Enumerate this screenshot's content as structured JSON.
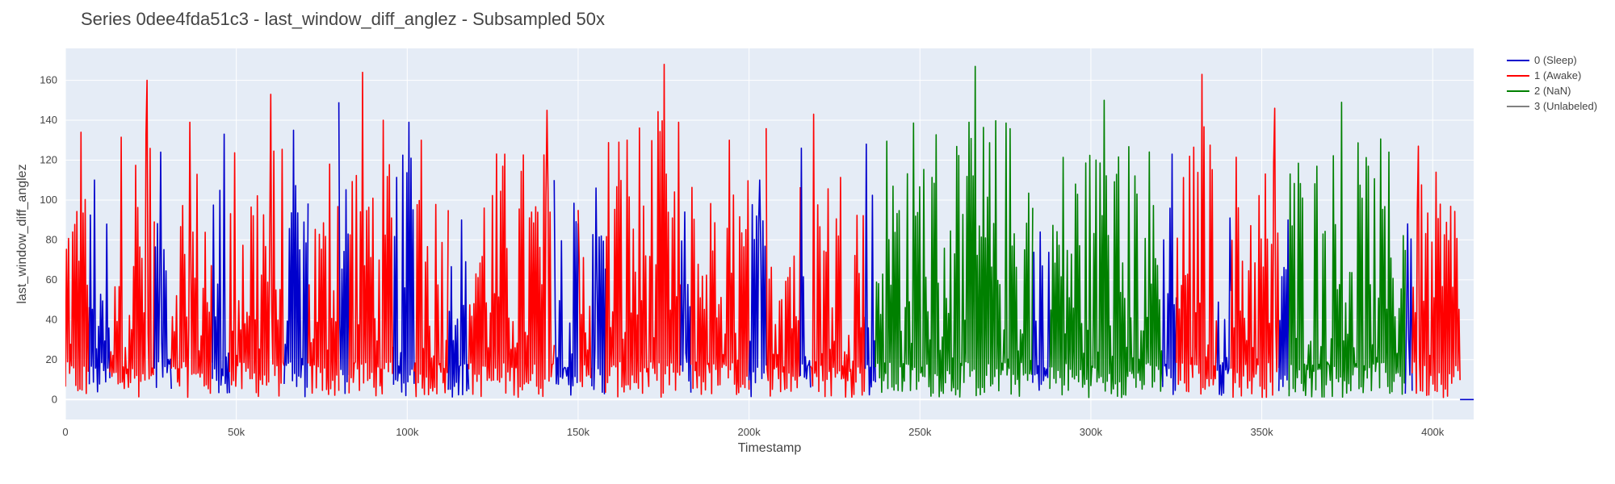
{
  "chart_data": {
    "type": "line",
    "title": "Series 0dee4fda51c3 - last_window_diff_anglez - Subsampled 50x",
    "xlabel": "Timestamp",
    "ylabel": "last_window_diff_anglez",
    "xlim": [
      0,
      412000
    ],
    "ylim": [
      -10,
      176
    ],
    "xticks": [
      0,
      50000,
      100000,
      150000,
      200000,
      250000,
      300000,
      350000,
      400000
    ],
    "xtick_labels": [
      "0",
      "50k",
      "100k",
      "150k",
      "200k",
      "250k",
      "300k",
      "350k",
      "400k"
    ],
    "yticks": [
      0,
      20,
      40,
      60,
      80,
      100,
      120,
      140,
      160
    ],
    "ytick_labels": [
      "0",
      "20",
      "40",
      "60",
      "80",
      "100",
      "120",
      "140",
      "160"
    ],
    "grid": true,
    "legend_position": "top-right",
    "series": [
      {
        "name": "0 (Sleep)",
        "color": "#0000cc"
      },
      {
        "name": "1 (Awake)",
        "color": "#ff0000"
      },
      {
        "name": "2 (NaN)",
        "color": "#008000"
      },
      {
        "name": "3 (Unlabeled)",
        "color": "#808080"
      }
    ],
    "segments": [
      {
        "series": 1,
        "x": [
          0,
          7000
        ],
        "peak": 134
      },
      {
        "series": 0,
        "x": [
          7000,
          13000
        ],
        "peak": 110
      },
      {
        "series": 1,
        "x": [
          13000,
          26000
        ],
        "peak": 160
      },
      {
        "series": 0,
        "x": [
          26000,
          31000
        ],
        "peak": 124
      },
      {
        "series": 1,
        "x": [
          31000,
          43000
        ],
        "peak": 139
      },
      {
        "series": 0,
        "x": [
          43000,
          48000
        ],
        "peak": 133
      },
      {
        "series": 1,
        "x": [
          48000,
          64000
        ],
        "peak": 153
      },
      {
        "series": 0,
        "x": [
          64000,
          71000
        ],
        "peak": 135
      },
      {
        "series": 1,
        "x": [
          71000,
          80000
        ],
        "peak": 118
      },
      {
        "series": 0,
        "x": [
          80000,
          83000
        ],
        "peak": 149
      },
      {
        "series": 1,
        "x": [
          83000,
          96000
        ],
        "peak": 164
      },
      {
        "series": 0,
        "x": [
          96000,
          102000
        ],
        "peak": 139
      },
      {
        "series": 1,
        "x": [
          102000,
          112000
        ],
        "peak": 130
      },
      {
        "series": 0,
        "x": [
          112000,
          118000
        ],
        "peak": 90
      },
      {
        "series": 1,
        "x": [
          118000,
          143000
        ],
        "peak": 145
      },
      {
        "series": 0,
        "x": [
          143000,
          150000
        ],
        "peak": 110
      },
      {
        "series": 1,
        "x": [
          150000,
          154000
        ],
        "peak": 95
      },
      {
        "series": 0,
        "x": [
          154000,
          158000
        ],
        "peak": 106
      },
      {
        "series": 1,
        "x": [
          158000,
          180000
        ],
        "peak": 168
      },
      {
        "series": 0,
        "x": [
          180000,
          183000
        ],
        "peak": 94
      },
      {
        "series": 1,
        "x": [
          183000,
          200000
        ],
        "peak": 130
      },
      {
        "series": 0,
        "x": [
          200000,
          205000
        ],
        "peak": 110
      },
      {
        "series": 1,
        "x": [
          205000,
          215000
        ],
        "peak": 136
      },
      {
        "series": 0,
        "x": [
          215000,
          218000
        ],
        "peak": 126
      },
      {
        "series": 1,
        "x": [
          218000,
          234000
        ],
        "peak": 143
      },
      {
        "series": 0,
        "x": [
          234000,
          237000
        ],
        "peak": 128
      },
      {
        "series": 2,
        "x": [
          237000,
          283000
        ],
        "peak": 167
      },
      {
        "series": 0,
        "x": [
          283000,
          288000
        ],
        "peak": 84
      },
      {
        "series": 2,
        "x": [
          288000,
          321000
        ],
        "peak": 150
      },
      {
        "series": 0,
        "x": [
          321000,
          325000
        ],
        "peak": 123
      },
      {
        "series": 1,
        "x": [
          325000,
          337000
        ],
        "peak": 163
      },
      {
        "series": 0,
        "x": [
          337000,
          341000
        ],
        "peak": 91
      },
      {
        "series": 1,
        "x": [
          341000,
          355000
        ],
        "peak": 146
      },
      {
        "series": 0,
        "x": [
          355000,
          358000
        ],
        "peak": 90
      },
      {
        "series": 2,
        "x": [
          358000,
          392000
        ],
        "peak": 149
      },
      {
        "series": 0,
        "x": [
          392000,
          394000
        ],
        "peak": 88
      },
      {
        "series": 1,
        "x": [
          394000,
          408000
        ],
        "peak": 127
      },
      {
        "series": 0,
        "x": [
          408000,
          412000
        ],
        "peak": 0
      }
    ]
  }
}
